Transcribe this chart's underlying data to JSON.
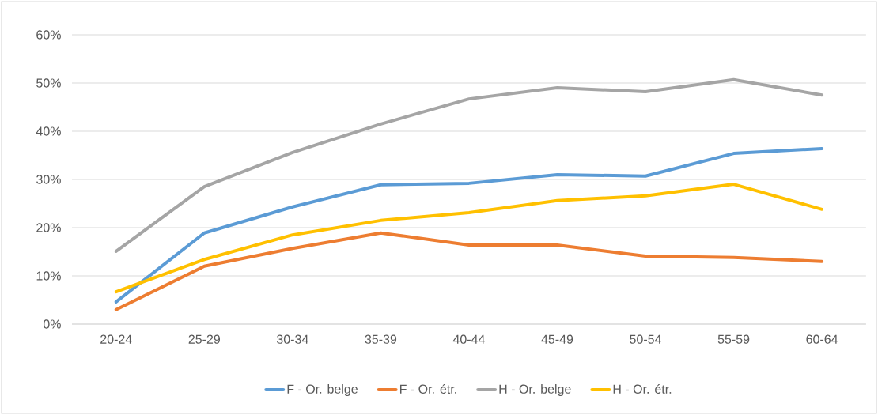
{
  "chart_data": {
    "type": "line",
    "categories": [
      "20-24",
      "25-29",
      "30-34",
      "35-39",
      "40-44",
      "45-49",
      "50-54",
      "55-59",
      "60-64"
    ],
    "series": [
      {
        "name": "F - Or. belge",
        "color": "#5b9bd5",
        "values": [
          4.6,
          18.9,
          24.3,
          28.9,
          29.2,
          31.0,
          30.7,
          35.4,
          36.4
        ]
      },
      {
        "name": "F - Or. étr.",
        "color": "#ed7d31",
        "values": [
          3.0,
          12.0,
          15.7,
          18.9,
          16.4,
          16.4,
          14.1,
          13.8,
          13.0
        ]
      },
      {
        "name": "H - Or. belge",
        "color": "#a5a5a5",
        "values": [
          15.1,
          28.5,
          35.6,
          41.5,
          46.7,
          49.0,
          48.2,
          50.7,
          47.5
        ]
      },
      {
        "name": "H - Or. étr.",
        "color": "#ffc000",
        "values": [
          6.7,
          13.4,
          18.5,
          21.5,
          23.1,
          25.6,
          26.6,
          29.0,
          23.8
        ]
      }
    ],
    "ylim": [
      0,
      60
    ],
    "yticks": [
      {
        "value": 0,
        "label": "0%"
      },
      {
        "value": 10,
        "label": "10%"
      },
      {
        "value": 20,
        "label": "20%"
      },
      {
        "value": 30,
        "label": "30%"
      },
      {
        "value": 40,
        "label": "40%"
      },
      {
        "value": 50,
        "label": "50%"
      },
      {
        "value": 60,
        "label": "60%"
      }
    ],
    "grid": "y",
    "legend": "bottom",
    "marker": "none",
    "line_style": "solid"
  }
}
